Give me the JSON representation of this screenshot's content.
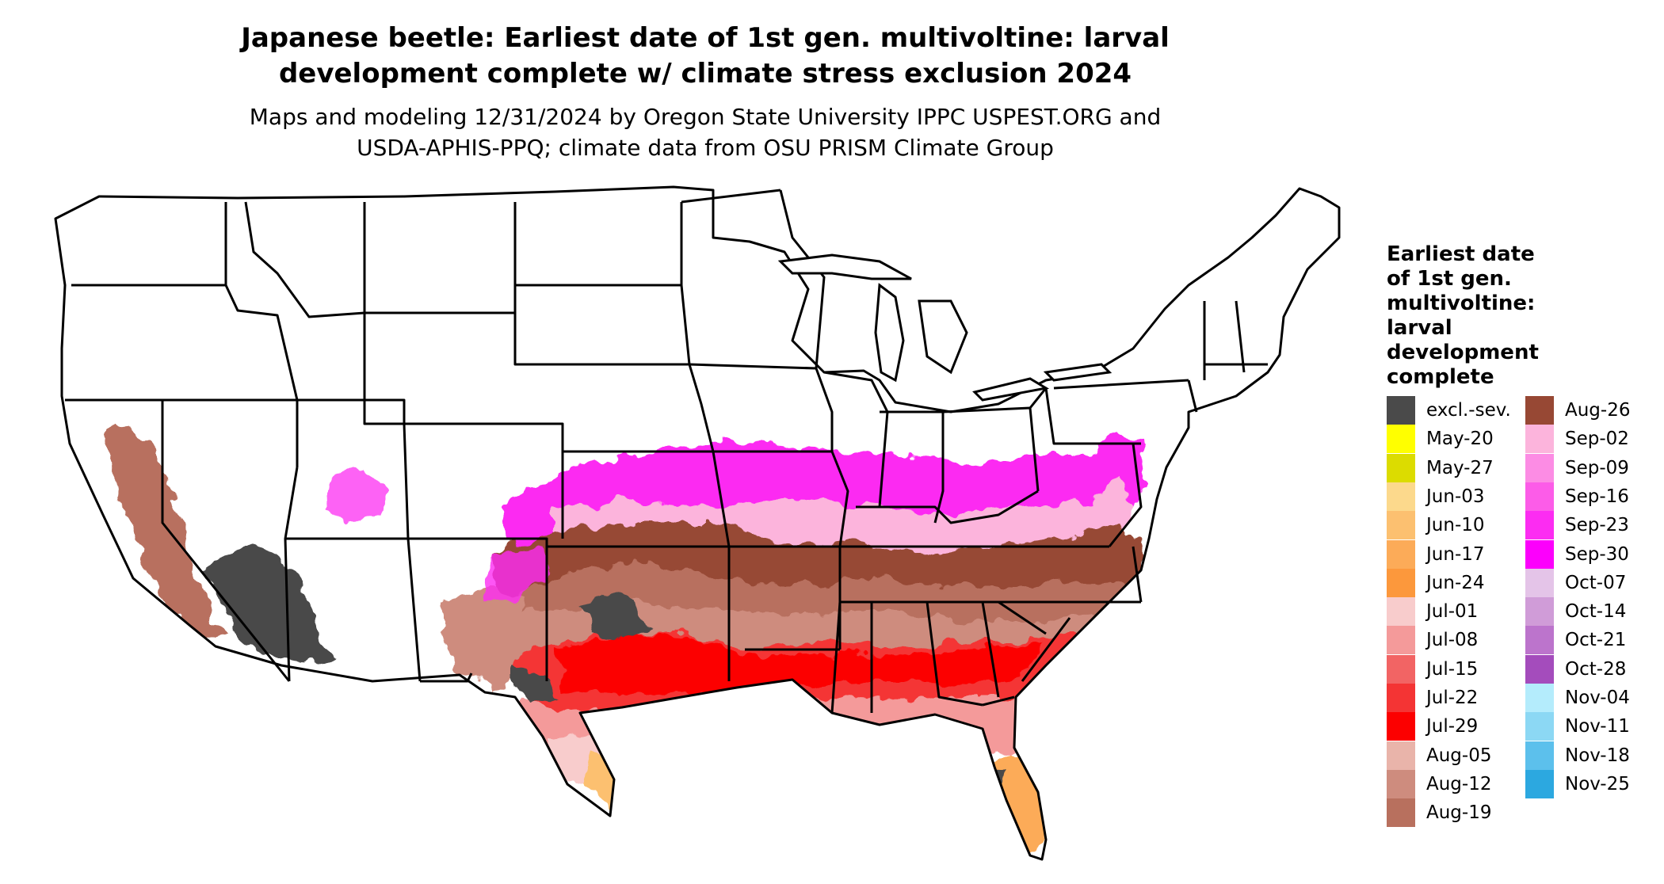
{
  "title_line1": "Japanese beetle: Earliest date of 1st gen. multivoltine: larval",
  "title_line2": "development complete w/ climate stress exclusion 2024",
  "subtitle_line1": "Maps and modeling 12/31/2024 by Oregon State University IPPC USPEST.ORG and",
  "subtitle_line2": "USDA-APHIS-PPQ; climate data from OSU PRISM Climate Group",
  "legend": {
    "title_lines": [
      "Earliest date",
      "of 1st gen.",
      "multivoltine:",
      "larval",
      "development",
      "complete"
    ],
    "items": [
      {
        "label": "excl.-sev.",
        "color": "#4a4a4a"
      },
      {
        "label": "May-20",
        "color": "#ffff00"
      },
      {
        "label": "May-27",
        "color": "#dcdc00"
      },
      {
        "label": "Jun-03",
        "color": "#fcd98c"
      },
      {
        "label": "Jun-10",
        "color": "#fcc070"
      },
      {
        "label": "Jun-17",
        "color": "#fcab58"
      },
      {
        "label": "Jun-24",
        "color": "#fc983c"
      },
      {
        "label": "Jul-01",
        "color": "#f8cccc"
      },
      {
        "label": "Jul-08",
        "color": "#f49a9a"
      },
      {
        "label": "Jul-15",
        "color": "#f26464"
      },
      {
        "label": "Jul-22",
        "color": "#f43434"
      },
      {
        "label": "Jul-29",
        "color": "#fc0000"
      },
      {
        "label": "Aug-05",
        "color": "#e9b4aa"
      },
      {
        "label": "Aug-12",
        "color": "#ce8c7e"
      },
      {
        "label": "Aug-19",
        "color": "#b8705e"
      },
      {
        "label": "Aug-26",
        "color": "#974834"
      },
      {
        "label": "Sep-02",
        "color": "#fcb4dc"
      },
      {
        "label": "Sep-09",
        "color": "#fc8ce4"
      },
      {
        "label": "Sep-16",
        "color": "#fc5ce8"
      },
      {
        "label": "Sep-23",
        "color": "#fc2cf2"
      },
      {
        "label": "Sep-30",
        "color": "#fc00fc"
      },
      {
        "label": "Oct-07",
        "color": "#e4c4e8"
      },
      {
        "label": "Oct-14",
        "color": "#d09cd8"
      },
      {
        "label": "Oct-21",
        "color": "#bc74cc"
      },
      {
        "label": "Oct-28",
        "color": "#a44cbc"
      },
      {
        "label": "Nov-04",
        "color": "#b4ecfc"
      },
      {
        "label": "Nov-11",
        "color": "#8cd8f4"
      },
      {
        "label": "Nov-18",
        "color": "#5cc0ec"
      },
      {
        "label": "Nov-25",
        "color": "#2ca8e0"
      }
    ]
  }
}
